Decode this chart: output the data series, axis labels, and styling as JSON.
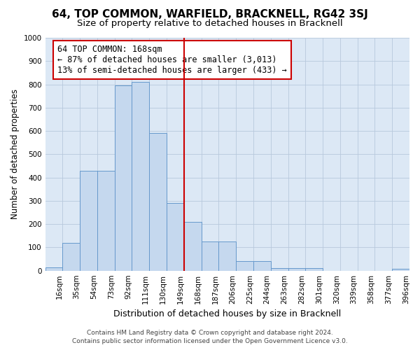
{
  "title": "64, TOP COMMON, WARFIELD, BRACKNELL, RG42 3SJ",
  "subtitle": "Size of property relative to detached houses in Bracknell",
  "xlabel": "Distribution of detached houses by size in Bracknell",
  "ylabel": "Number of detached properties",
  "footer_line1": "Contains HM Land Registry data © Crown copyright and database right 2024.",
  "footer_line2": "Contains public sector information licensed under the Open Government Licence v3.0.",
  "bin_labels": [
    "16sqm",
    "35sqm",
    "54sqm",
    "73sqm",
    "92sqm",
    "111sqm",
    "130sqm",
    "149sqm",
    "168sqm",
    "187sqm",
    "206sqm",
    "225sqm",
    "244sqm",
    "263sqm",
    "282sqm",
    "301sqm",
    "320sqm",
    "339sqm",
    "358sqm",
    "377sqm",
    "396sqm"
  ],
  "bar_heights": [
    15,
    120,
    430,
    430,
    795,
    810,
    590,
    290,
    210,
    125,
    125,
    40,
    40,
    12,
    12,
    10,
    0,
    0,
    0,
    0,
    8
  ],
  "bar_color": "#c5d8ee",
  "bar_edge_color": "#6699cc",
  "marker_line_index": 8,
  "annotation_line1": "64 TOP COMMON: 168sqm",
  "annotation_line2": "← 87% of detached houses are smaller (3,013)",
  "annotation_line3": "13% of semi-detached houses are larger (433) →",
  "annotation_box_edgecolor": "#cc0000",
  "marker_line_color": "#cc0000",
  "ylim": [
    0,
    1000
  ],
  "yticks": [
    0,
    100,
    200,
    300,
    400,
    500,
    600,
    700,
    800,
    900,
    1000
  ],
  "grid_color": "#b8c8dc",
  "background_color": "#dce8f5",
  "title_fontsize": 11,
  "subtitle_fontsize": 9.5,
  "xlabel_fontsize": 9,
  "ylabel_fontsize": 8.5,
  "tick_fontsize": 7.5,
  "annotation_fontsize": 8.5,
  "footer_fontsize": 6.5
}
